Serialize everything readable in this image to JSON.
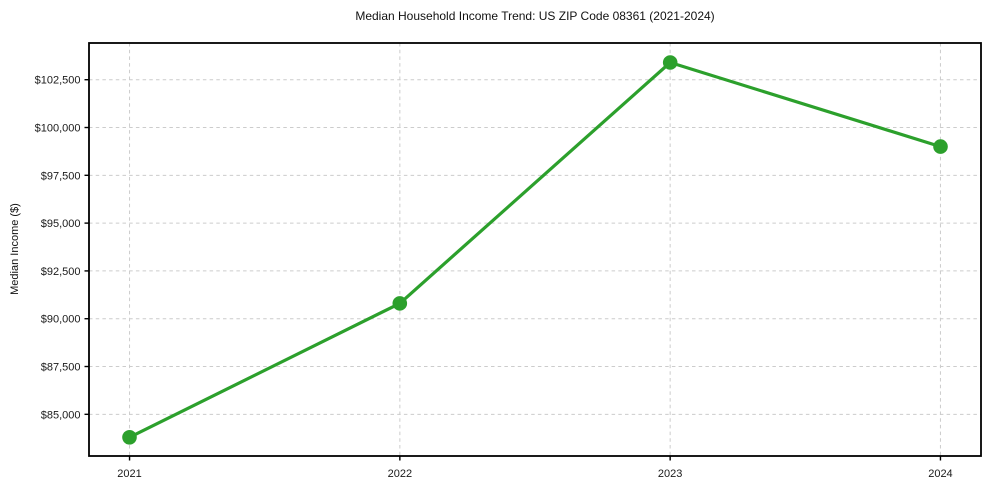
{
  "chart_data": {
    "type": "line",
    "title": "Median Household Income Trend: US ZIP Code 08361 (2021-2024)",
    "xlabel": "",
    "ylabel": "Median Income ($)",
    "x": [
      2021,
      2022,
      2023,
      2024
    ],
    "x_tick_labels": [
      "2021",
      "2022",
      "2023",
      "2024"
    ],
    "y_ticks": [
      {
        "value": 85000,
        "label": "$85,000"
      },
      {
        "value": 87500,
        "label": "$87,500"
      },
      {
        "value": 90000,
        "label": "$90,000"
      },
      {
        "value": 92500,
        "label": "$92,500"
      },
      {
        "value": 95000,
        "label": "$95,000"
      },
      {
        "value": 97500,
        "label": "$97,500"
      },
      {
        "value": 100000,
        "label": "$100,000"
      },
      {
        "value": 102500,
        "label": "$102,500"
      }
    ],
    "series": [
      {
        "values": [
          83800,
          90800,
          103400,
          99000
        ]
      }
    ],
    "xlim": [
      2020.85,
      2024.15
    ],
    "ylim": [
      82820,
      104420
    ],
    "grid": true,
    "grid_style": "dashed",
    "legend": false,
    "marker": "circle",
    "line_color": "#2ca02c",
    "grid_color": "#cccccc",
    "spine_color": "#000000",
    "tick_color": "#000000",
    "text_color": "#1a1a1a",
    "background_color": "#ffffff"
  }
}
